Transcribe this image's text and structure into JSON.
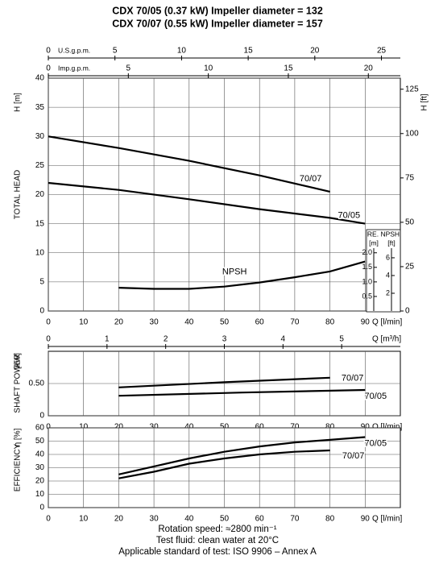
{
  "title_lines": [
    "CDX 70/05 (0.37 kW) Impeller diameter = 132",
    "CDX 70/07 (0.55 kW) Impeller diameter = 157"
  ],
  "footer_lines": [
    "Rotation speed: ≈2800 min⁻¹",
    "Test fluid: clean water at 20°C",
    "Applicable standard of test: ISO 9906 – Annex A"
  ],
  "chart_data": [
    {
      "type": "line",
      "ylabel": "TOTAL HEAD",
      "yunit": "H [m]",
      "xlabel": "Q [l/min]",
      "xlim": [
        0,
        100
      ],
      "xticks": [
        0,
        10,
        20,
        30,
        40,
        50,
        60,
        70,
        80,
        90
      ],
      "ylim": [
        0,
        40
      ],
      "yticks": [
        0,
        5,
        10,
        15,
        20,
        25,
        30,
        35,
        40
      ],
      "grid": true,
      "series": [
        {
          "name": "70/07",
          "color": "#000000",
          "x": [
            0,
            20,
            40,
            60,
            80
          ],
          "values": [
            30,
            28,
            25.8,
            23.3,
            20.5
          ]
        },
        {
          "name": "70/05",
          "color": "#000000",
          "x": [
            0,
            20,
            40,
            60,
            80,
            90
          ],
          "values": [
            22,
            20.8,
            19.2,
            17.5,
            16,
            15
          ]
        },
        {
          "name": "NPSH",
          "color": "#000000",
          "axis": "y2",
          "x": [
            20,
            30,
            40,
            50,
            60,
            70,
            80,
            90
          ],
          "values": [
            0.8,
            0.76,
            0.76,
            0.84,
            0.98,
            1.16,
            1.36,
            1.7
          ]
        }
      ],
      "y2title": "RE. NPSH",
      "y2label": "[m]",
      "y2lim": [
        0,
        8
      ],
      "y2ticks": [
        {
          "value": 0.5,
          "label": "0.5"
        },
        {
          "value": 1,
          "label": "1.0"
        },
        {
          "value": 1.5,
          "label": "1.5"
        },
        {
          "value": 2,
          "label": "2.0"
        }
      ],
      "y2ft_axis": {
        "label": "[ft]",
        "lim": [
          0,
          26.25
        ],
        "ticks": [
          2,
          4,
          6
        ]
      },
      "right_axis": {
        "label": "H [ft]",
        "lim": [
          0,
          131.23
        ],
        "ticks": [
          0,
          25,
          50,
          75,
          100,
          125
        ]
      },
      "top_axes": [
        {
          "label": "U.S.g.p.m.",
          "lim": [
            0,
            26.42
          ],
          "ticks": [
            0,
            5,
            10,
            15,
            20,
            25
          ]
        },
        {
          "label": "Imp.g.p.m.",
          "lim": [
            0,
            22
          ],
          "ticks": [
            0,
            5,
            10,
            15,
            20
          ]
        }
      ],
      "bottom_axis": {
        "label": "Q [m³/h]",
        "lim": [
          0,
          6
        ],
        "ticks": [
          0,
          1,
          2,
          3,
          4,
          5
        ]
      }
    },
    {
      "type": "line",
      "ylabel": "SHAFT POWER",
      "yunit": "[kW]",
      "xlabel": "Q [l/min]",
      "xlim": [
        0,
        100
      ],
      "xticks": [
        0,
        10,
        20,
        30,
        40,
        50,
        60,
        70,
        80,
        90
      ],
      "ylim": [
        0,
        1
      ],
      "yticks": [
        0,
        {
          "value": 0.5,
          "label": "0.50"
        }
      ],
      "grid": true,
      "series": [
        {
          "name": "70/07",
          "color": "#000000",
          "x": [
            20,
            50,
            80
          ],
          "values": [
            0.44,
            0.52,
            0.59
          ]
        },
        {
          "name": "70/05",
          "color": "#000000",
          "x": [
            20,
            55,
            90
          ],
          "values": [
            0.31,
            0.36,
            0.4
          ]
        }
      ]
    },
    {
      "type": "line",
      "ylabel": "EFFICIENCY",
      "yunit": "η [%]",
      "xlabel": "Q [l/min]",
      "xlim": [
        0,
        100
      ],
      "xticks": [
        0,
        10,
        20,
        30,
        40,
        50,
        60,
        70,
        80,
        90
      ],
      "ylim": [
        0,
        60
      ],
      "yticks": [
        0,
        10,
        20,
        30,
        40,
        50,
        60
      ],
      "grid": true,
      "series": [
        {
          "name": "70/05",
          "color": "#000000",
          "x": [
            20,
            30,
            40,
            50,
            60,
            70,
            80,
            90
          ],
          "values": [
            25,
            31,
            37,
            42,
            46,
            49,
            51,
            53
          ]
        },
        {
          "name": "70/07",
          "color": "#000000",
          "x": [
            20,
            30,
            40,
            50,
            60,
            70,
            80
          ],
          "values": [
            22,
            27,
            33,
            37,
            40,
            42,
            43
          ]
        }
      ]
    }
  ]
}
